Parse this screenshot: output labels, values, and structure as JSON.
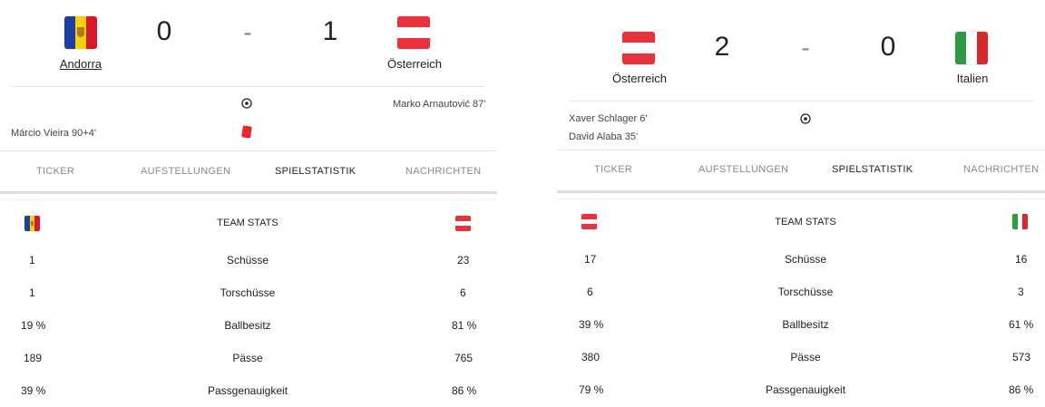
{
  "colors": {
    "andorra_blue": "#1c3fa6",
    "andorra_yellow": "#f5d20a",
    "andorra_red": "#d8192b",
    "austria_red": "#e8323c",
    "italy_green": "#2e9a43",
    "italy_red": "#d8282e",
    "tab_underline": "#dddddd",
    "red_card": "#e8262d"
  },
  "match1": {
    "home": {
      "name": "Andorra",
      "flag": "andorra-flag"
    },
    "away": {
      "name": "Österreich",
      "flag": "austria-flag"
    },
    "home_score": "0",
    "separator": "-",
    "away_score": "1",
    "events": [
      {
        "side": "away",
        "type": "goal",
        "icon": "ball-icon",
        "text": "Marko Arnautović 87'"
      },
      {
        "side": "home",
        "type": "red-card",
        "icon": "red-card-icon",
        "text": "Márcio Vieira 90+4'"
      }
    ],
    "tabs": [
      {
        "label": "TICKER",
        "active": false
      },
      {
        "label": "AUFSTELLUNGEN",
        "active": false
      },
      {
        "label": "SPIELSTATISTIK",
        "active": true
      },
      {
        "label": "NACHRICHTEN",
        "active": false
      }
    ],
    "stats_title": "TEAM STATS",
    "stats": [
      {
        "name": "Schüsse",
        "home": "1",
        "away": "23"
      },
      {
        "name": "Torschüsse",
        "home": "1",
        "away": "6"
      },
      {
        "name": "Ballbesitz",
        "home": "19 %",
        "away": "81 %"
      },
      {
        "name": "Pässe",
        "home": "189",
        "away": "765"
      },
      {
        "name": "Passgenauigkeit",
        "home": "39 %",
        "away": "86 %"
      }
    ]
  },
  "match2": {
    "home": {
      "name": "Österreich",
      "flag": "austria-flag"
    },
    "away": {
      "name": "Italien",
      "flag": "italy-flag"
    },
    "home_score": "2",
    "separator": "-",
    "away_score": "0",
    "events": [
      {
        "side": "home",
        "type": "goal",
        "icon": "ball-icon",
        "text": "Xaver Schlager 6'"
      },
      {
        "side": "home",
        "type": "goal",
        "icon": "ball-icon",
        "text": "David Alaba 35'"
      }
    ],
    "tabs": [
      {
        "label": "TICKER",
        "active": false
      },
      {
        "label": "AUFSTELLUNGEN",
        "active": false
      },
      {
        "label": "SPIELSTATISTIK",
        "active": true
      },
      {
        "label": "NACHRICHTEN",
        "active": false
      }
    ],
    "stats_title": "TEAM STATS",
    "stats": [
      {
        "name": "Schüsse",
        "home": "17",
        "away": "16"
      },
      {
        "name": "Torschüsse",
        "home": "6",
        "away": "3"
      },
      {
        "name": "Ballbesitz",
        "home": "39 %",
        "away": "61 %"
      },
      {
        "name": "Pässe",
        "home": "380",
        "away": "573"
      },
      {
        "name": "Passgenauigkeit",
        "home": "79 %",
        "away": "86 %"
      }
    ]
  }
}
